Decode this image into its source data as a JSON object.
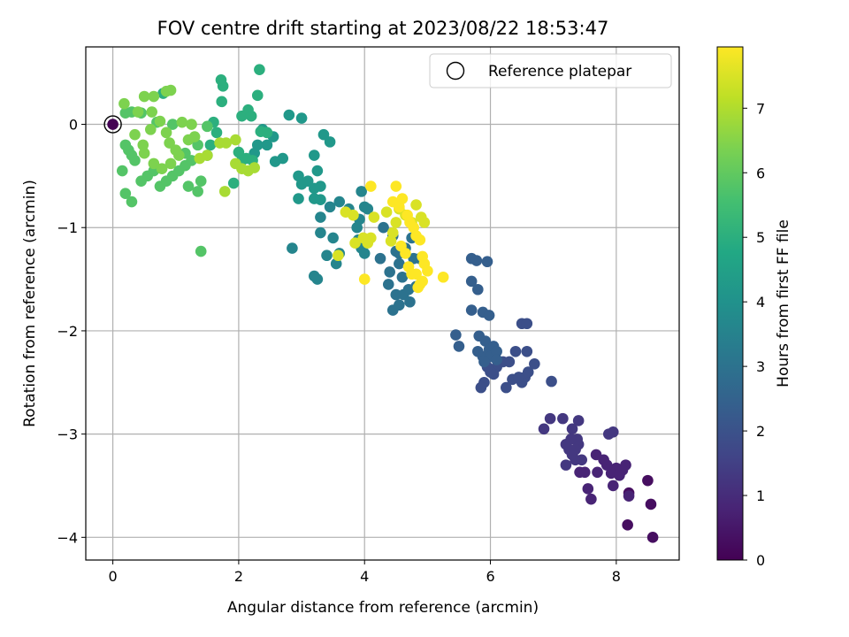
{
  "chart_data": {
    "type": "scatter",
    "title": "FOV centre drift starting at 2023/08/22 18:53:47",
    "xlabel": "Angular distance from reference (arcmin)",
    "ylabel": "Rotation from reference (arcmin)",
    "xlim": [
      -0.43,
      9.0
    ],
    "ylim": [
      -4.22,
      0.75
    ],
    "xticks": [
      0,
      2,
      4,
      6,
      8
    ],
    "yticks": [
      0,
      -1,
      -2,
      -3,
      -4
    ],
    "xtick_labels": [
      "0",
      "2",
      "4",
      "6",
      "8"
    ],
    "ytick_labels": [
      "0",
      "−1",
      "−2",
      "−3",
      "−4"
    ],
    "grid": true,
    "legend": {
      "placement": "top-right",
      "entries": [
        "Reference platepar"
      ]
    },
    "colormap": "viridis",
    "colorbar": {
      "label": "Hours from first FF file",
      "range": [
        0,
        7.95
      ],
      "ticks": [
        0,
        1,
        2,
        3,
        4,
        5,
        6,
        7
      ],
      "tick_labels": [
        "0",
        "1",
        "2",
        "3",
        "4",
        "5",
        "6",
        "7"
      ]
    },
    "reference_point": {
      "x": 0,
      "y": 0
    },
    "point_groups": [
      {
        "hours": 0.3,
        "points": [
          [
            8.58,
            -4.0
          ],
          [
            8.55,
            -3.68
          ],
          [
            8.2,
            -3.57
          ],
          [
            8.18,
            -3.88
          ],
          [
            8.5,
            -3.45
          ]
        ]
      },
      {
        "hours": 0.8,
        "points": [
          [
            8.15,
            -3.3
          ],
          [
            8.1,
            -3.35
          ],
          [
            8.0,
            -3.33
          ],
          [
            7.92,
            -3.38
          ],
          [
            7.85,
            -3.3
          ],
          [
            8.2,
            -3.6
          ],
          [
            7.95,
            -3.5
          ],
          [
            7.6,
            -3.63
          ],
          [
            7.5,
            -3.37
          ],
          [
            7.8,
            -3.25
          ],
          [
            8.05,
            -3.4
          ],
          [
            7.7,
            -3.37
          ],
          [
            7.55,
            -3.53
          ],
          [
            7.68,
            -3.2
          ],
          [
            7.42,
            -3.37
          ]
        ]
      },
      {
        "hours": 1.3,
        "points": [
          [
            7.2,
            -3.1
          ],
          [
            7.25,
            -3.15
          ],
          [
            7.3,
            -3.2
          ],
          [
            7.35,
            -3.25
          ],
          [
            7.4,
            -3.1
          ],
          [
            7.15,
            -2.85
          ],
          [
            7.4,
            -2.87
          ],
          [
            6.95,
            -2.85
          ],
          [
            7.88,
            -3.0
          ],
          [
            7.95,
            -2.98
          ],
          [
            7.3,
            -2.95
          ],
          [
            7.38,
            -3.05
          ],
          [
            7.2,
            -3.3
          ],
          [
            7.45,
            -3.25
          ],
          [
            6.85,
            -2.95
          ],
          [
            7.28,
            -3.05
          ],
          [
            7.35,
            -3.15
          ]
        ]
      },
      {
        "hours": 1.9,
        "points": [
          [
            6.5,
            -1.93
          ],
          [
            6.58,
            -1.93
          ],
          [
            6.58,
            -2.2
          ],
          [
            6.55,
            -2.45
          ],
          [
            6.6,
            -2.4
          ],
          [
            6.5,
            -2.5
          ],
          [
            6.35,
            -2.47
          ],
          [
            6.7,
            -2.32
          ],
          [
            6.97,
            -2.49
          ],
          [
            6.4,
            -2.2
          ],
          [
            6.3,
            -2.3
          ],
          [
            6.2,
            -2.3
          ],
          [
            6.1,
            -2.35
          ],
          [
            6.05,
            -2.42
          ],
          [
            6.0,
            -2.4
          ],
          [
            5.95,
            -2.35
          ],
          [
            5.9,
            -2.5
          ],
          [
            5.85,
            -2.55
          ],
          [
            6.25,
            -2.55
          ],
          [
            6.45,
            -2.45
          ]
        ]
      },
      {
        "hours": 2.4,
        "points": [
          [
            5.7,
            -1.3
          ],
          [
            5.78,
            -1.32
          ],
          [
            5.95,
            -1.33
          ],
          [
            5.7,
            -1.52
          ],
          [
            5.8,
            -1.6
          ],
          [
            5.7,
            -1.8
          ],
          [
            5.88,
            -1.82
          ],
          [
            5.98,
            -1.85
          ],
          [
            5.82,
            -2.05
          ],
          [
            5.92,
            -2.1
          ],
          [
            5.98,
            -2.18
          ],
          [
            6.05,
            -2.15
          ],
          [
            5.8,
            -2.2
          ],
          [
            5.88,
            -2.25
          ],
          [
            6.0,
            -2.25
          ],
          [
            6.1,
            -2.2
          ],
          [
            5.45,
            -2.04
          ],
          [
            5.5,
            -2.15
          ],
          [
            5.9,
            -2.3
          ],
          [
            6.1,
            -2.28
          ]
        ]
      },
      {
        "hours": 3.0,
        "points": [
          [
            4.5,
            -1.65
          ],
          [
            4.55,
            -1.75
          ],
          [
            4.62,
            -1.65
          ],
          [
            4.7,
            -1.6
          ],
          [
            4.45,
            -1.8
          ],
          [
            4.38,
            -1.55
          ],
          [
            4.72,
            -1.72
          ],
          [
            4.82,
            -1.57
          ],
          [
            4.78,
            -1.3
          ],
          [
            4.88,
            -1.3
          ],
          [
            4.6,
            -1.48
          ],
          [
            4.55,
            -1.35
          ],
          [
            4.5,
            -1.23
          ],
          [
            4.4,
            -1.43
          ],
          [
            4.25,
            -1.3
          ],
          [
            4.45,
            -1.08
          ],
          [
            4.3,
            -1.0
          ],
          [
            4.55,
            -1.25
          ],
          [
            4.65,
            -1.2
          ],
          [
            4.75,
            -1.1
          ]
        ]
      },
      {
        "hours": 3.6,
        "points": [
          [
            3.95,
            -0.65
          ],
          [
            4.0,
            -0.8
          ],
          [
            4.05,
            -0.82
          ],
          [
            3.92,
            -0.92
          ],
          [
            3.88,
            -1.0
          ],
          [
            3.9,
            -1.12
          ],
          [
            3.95,
            -1.2
          ],
          [
            4.0,
            -1.25
          ],
          [
            3.75,
            -0.82
          ],
          [
            3.45,
            -0.8
          ],
          [
            3.6,
            -0.75
          ],
          [
            3.3,
            -0.9
          ],
          [
            3.3,
            -1.05
          ],
          [
            3.5,
            -1.1
          ],
          [
            3.4,
            -1.27
          ],
          [
            3.6,
            -1.25
          ],
          [
            3.55,
            -1.35
          ],
          [
            3.2,
            -1.47
          ],
          [
            3.25,
            -1.5
          ],
          [
            2.85,
            -1.2
          ]
        ]
      },
      {
        "hours": 4.2,
        "points": [
          [
            2.8,
            0.09
          ],
          [
            3.0,
            0.06
          ],
          [
            2.95,
            -0.5
          ],
          [
            3.0,
            -0.58
          ],
          [
            3.1,
            -0.55
          ],
          [
            3.2,
            -0.72
          ],
          [
            3.3,
            -0.73
          ],
          [
            3.3,
            -0.6
          ],
          [
            3.2,
            -0.62
          ],
          [
            3.25,
            -0.45
          ],
          [
            3.2,
            -0.3
          ],
          [
            3.35,
            -0.1
          ],
          [
            3.45,
            -0.17
          ],
          [
            2.58,
            -0.36
          ],
          [
            2.7,
            -0.33
          ],
          [
            2.45,
            -0.2
          ],
          [
            2.38,
            -0.05
          ],
          [
            2.55,
            -0.12
          ],
          [
            2.3,
            -0.2
          ],
          [
            2.25,
            -0.28
          ],
          [
            2.95,
            -0.72
          ]
        ]
      },
      {
        "hours": 5.0,
        "points": [
          [
            2.33,
            0.53
          ],
          [
            2.3,
            0.28
          ],
          [
            1.75,
            0.37
          ],
          [
            1.73,
            0.22
          ],
          [
            1.72,
            0.43
          ],
          [
            2.05,
            0.08
          ],
          [
            2.15,
            0.14
          ],
          [
            2.2,
            0.08
          ],
          [
            2.35,
            -0.07
          ],
          [
            2.45,
            -0.08
          ],
          [
            2.0,
            -0.27
          ],
          [
            2.05,
            -0.35
          ],
          [
            2.12,
            -0.33
          ],
          [
            2.22,
            -0.35
          ],
          [
            1.92,
            -0.57
          ],
          [
            0.8,
            0.3
          ],
          [
            1.6,
            0.02
          ],
          [
            1.65,
            -0.08
          ],
          [
            1.5,
            -0.3
          ],
          [
            1.55,
            -0.2
          ]
        ]
      },
      {
        "hours": 5.8,
        "points": [
          [
            1.4,
            -1.23
          ],
          [
            0.2,
            0.11
          ],
          [
            0.3,
            0.12
          ],
          [
            0.2,
            -0.2
          ],
          [
            0.25,
            -0.25
          ],
          [
            0.3,
            -0.3
          ],
          [
            0.35,
            -0.35
          ],
          [
            0.45,
            -0.55
          ],
          [
            0.55,
            -0.5
          ],
          [
            0.65,
            -0.45
          ],
          [
            0.75,
            -0.6
          ],
          [
            0.85,
            -0.55
          ],
          [
            0.95,
            -0.5
          ],
          [
            1.05,
            -0.45
          ],
          [
            1.15,
            -0.4
          ],
          [
            1.2,
            -0.6
          ],
          [
            1.35,
            -0.65
          ],
          [
            1.4,
            -0.55
          ],
          [
            0.3,
            -0.75
          ],
          [
            0.2,
            -0.67
          ],
          [
            0.15,
            -0.45
          ],
          [
            0.45,
            0.11
          ],
          [
            0.7,
            0.02
          ],
          [
            0.95,
            0.0
          ],
          [
            1.15,
            -0.28
          ],
          [
            1.25,
            -0.35
          ],
          [
            1.35,
            -0.2
          ],
          [
            1.5,
            -0.02
          ]
        ]
      },
      {
        "hours": 6.4,
        "points": [
          [
            0.18,
            0.2
          ],
          [
            0.35,
            -0.1
          ],
          [
            0.5,
            0.27
          ],
          [
            0.65,
            0.27
          ],
          [
            0.85,
            0.32
          ],
          [
            0.92,
            0.33
          ],
          [
            0.6,
            -0.05
          ],
          [
            0.75,
            0.03
          ],
          [
            0.9,
            -0.18
          ],
          [
            1.0,
            -0.25
          ],
          [
            1.1,
            0.02
          ],
          [
            1.25,
            0.0
          ],
          [
            0.5,
            -0.28
          ],
          [
            0.65,
            -0.38
          ],
          [
            0.78,
            -0.43
          ],
          [
            0.92,
            -0.38
          ],
          [
            1.05,
            -0.3
          ],
          [
            1.2,
            -0.15
          ],
          [
            0.48,
            -0.2
          ],
          [
            0.62,
            0.12
          ],
          [
            0.4,
            0.12
          ],
          [
            1.3,
            -0.12
          ],
          [
            0.85,
            -0.08
          ]
        ]
      },
      {
        "hours": 6.9,
        "points": [
          [
            1.5,
            -0.3
          ],
          [
            1.7,
            -0.18
          ],
          [
            1.8,
            -0.18
          ],
          [
            1.95,
            -0.15
          ],
          [
            2.05,
            -0.43
          ],
          [
            2.15,
            -0.45
          ],
          [
            2.25,
            -0.42
          ],
          [
            1.78,
            -0.65
          ],
          [
            1.95,
            -0.38
          ],
          [
            1.38,
            -0.33
          ]
        ]
      },
      {
        "hours": 7.5,
        "points": [
          [
            3.82,
            -0.88
          ],
          [
            3.85,
            -1.15
          ],
          [
            3.98,
            -1.1
          ],
          [
            3.7,
            -0.85
          ],
          [
            3.58,
            -1.27
          ],
          [
            4.05,
            -1.15
          ],
          [
            4.1,
            -1.1
          ],
          [
            4.15,
            -0.9
          ],
          [
            4.35,
            -0.85
          ],
          [
            4.42,
            -1.13
          ],
          [
            4.45,
            -1.05
          ],
          [
            4.5,
            -0.95
          ],
          [
            4.55,
            -0.82
          ],
          [
            4.65,
            -0.88
          ],
          [
            4.75,
            -0.95
          ],
          [
            4.82,
            -0.78
          ],
          [
            4.9,
            -0.9
          ],
          [
            4.95,
            -0.95
          ]
        ]
      },
      {
        "hours": 7.95,
        "points": [
          [
            4.1,
            -0.6
          ],
          [
            4.5,
            -0.6
          ],
          [
            4.45,
            -0.75
          ],
          [
            4.55,
            -0.8
          ],
          [
            4.6,
            -0.72
          ],
          [
            4.68,
            -0.88
          ],
          [
            4.72,
            -0.95
          ],
          [
            4.78,
            -1.0
          ],
          [
            4.82,
            -1.08
          ],
          [
            4.88,
            -1.12
          ],
          [
            4.92,
            -1.28
          ],
          [
            4.95,
            -1.35
          ],
          [
            5.0,
            -1.42
          ],
          [
            4.7,
            -1.38
          ],
          [
            4.75,
            -1.45
          ],
          [
            4.82,
            -1.45
          ],
          [
            4.88,
            -1.55
          ],
          [
            4.92,
            -1.52
          ],
          [
            4.65,
            -1.25
          ],
          [
            4.0,
            -1.5
          ],
          [
            5.25,
            -1.48
          ],
          [
            4.58,
            -1.18
          ],
          [
            4.85,
            -1.58
          ]
        ]
      }
    ]
  }
}
